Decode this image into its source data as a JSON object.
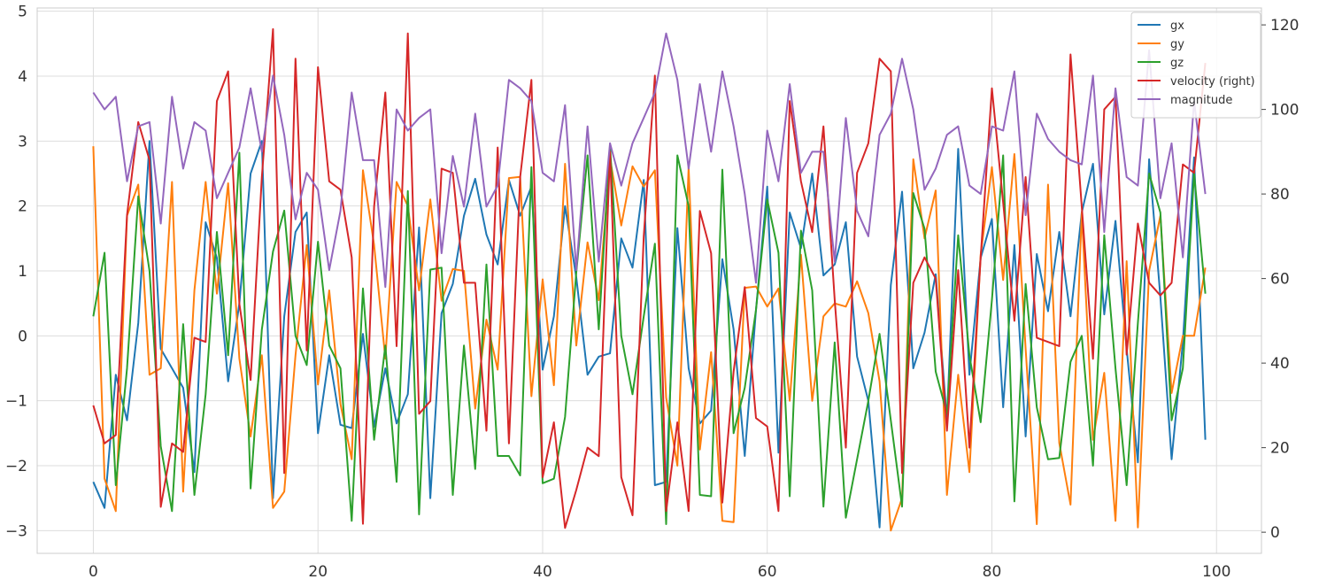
{
  "chart_data": {
    "type": "line",
    "title": "",
    "xlabel": "",
    "ylabel": "",
    "y2label": "",
    "xlim": [
      -5,
      104
    ],
    "ylim": [
      -3.35,
      5.05
    ],
    "y2lim": [
      -5,
      124
    ],
    "x_ticks": [
      0,
      20,
      40,
      60,
      80,
      100
    ],
    "x_tick_labels": [
      "0",
      "20",
      "40",
      "60",
      "80",
      "100"
    ],
    "y_ticks": [
      -3,
      -2,
      -1,
      0,
      1,
      2,
      3,
      4,
      5
    ],
    "y_tick_labels": [
      "−3",
      "−2",
      "−1",
      "0",
      "1",
      "2",
      "3",
      "4",
      "5"
    ],
    "y2_ticks": [
      0,
      20,
      40,
      60,
      80,
      100,
      120
    ],
    "y2_tick_labels": [
      "0",
      "20",
      "40",
      "60",
      "80",
      "100",
      "120"
    ],
    "grid": true,
    "legend_position": "top-right",
    "x": [
      0,
      1,
      2,
      3,
      4,
      5,
      6,
      7,
      8,
      9,
      10,
      11,
      12,
      13,
      14,
      15,
      16,
      17,
      18,
      19,
      20,
      21,
      22,
      23,
      24,
      25,
      26,
      27,
      28,
      29,
      30,
      31,
      32,
      33,
      34,
      35,
      36,
      37,
      38,
      39,
      40,
      41,
      42,
      43,
      44,
      45,
      46,
      47,
      48,
      49,
      50,
      51,
      52,
      53,
      54,
      55,
      56,
      57,
      58,
      59,
      60,
      61,
      62,
      63,
      64,
      65,
      66,
      67,
      68,
      69,
      70,
      71,
      72,
      73,
      74,
      75,
      76,
      77,
      78,
      79,
      80,
      81,
      82,
      83,
      84,
      85,
      86,
      87,
      88,
      89,
      90,
      91,
      92,
      93,
      94,
      95,
      96,
      97,
      98,
      99
    ],
    "series": [
      {
        "name": "gx",
        "axis": "left",
        "color": "#1f77b4",
        "values": [
          -2.25,
          -2.65,
          -0.6,
          -1.3,
          0.2,
          3.0,
          -0.2,
          -0.5,
          -0.8,
          -2.1,
          1.75,
          1.2,
          -0.7,
          0.5,
          2.5,
          3.0,
          -2.5,
          0.3,
          1.6,
          1.9,
          -1.5,
          -0.3,
          -1.37,
          -1.42,
          0.03,
          -1.4,
          -0.5,
          -1.35,
          -0.9,
          1.67,
          -2.5,
          0.35,
          0.8,
          1.85,
          2.42,
          1.56,
          1.1,
          2.4,
          1.85,
          2.3,
          -0.52,
          0.3,
          2.0,
          0.9,
          -0.6,
          -0.32,
          -0.27,
          1.5,
          1.05,
          2.4,
          -2.3,
          -2.25,
          1.66,
          -0.5,
          -1.35,
          -1.15,
          1.18,
          0.1,
          -1.85,
          0.4,
          2.3,
          -1.8,
          1.9,
          1.35,
          2.5,
          0.93,
          1.1,
          1.75,
          -0.32,
          -1.0,
          -2.95,
          0.78,
          2.22,
          -0.5,
          0.05,
          0.95,
          -1.3,
          2.88,
          -0.6,
          1.2,
          1.8,
          -1.1,
          1.4,
          -1.55,
          1.26,
          0.38,
          1.6,
          0.3,
          1.9,
          2.65,
          0.33,
          1.77,
          -0.2,
          -1.95,
          2.72,
          0.6,
          -1.9,
          -0.1,
          2.75,
          -1.6
        ]
      },
      {
        "name": "gy",
        "axis": "left",
        "color": "#ff7f0e",
        "values": [
          2.92,
          -2.2,
          -2.7,
          1.85,
          2.33,
          -0.6,
          -0.5,
          2.37,
          -2.4,
          0.7,
          2.37,
          0.65,
          2.35,
          -0.35,
          -1.55,
          -0.3,
          -2.65,
          -2.4,
          -0.3,
          1.4,
          -0.75,
          0.7,
          -1.05,
          -1.9,
          2.55,
          1.4,
          -0.35,
          2.37,
          2.0,
          0.7,
          2.1,
          0.54,
          1.03,
          1.0,
          -1.12,
          0.25,
          -0.52,
          2.43,
          2.45,
          -0.93,
          0.87,
          -0.76,
          2.65,
          -0.15,
          1.44,
          0.55,
          2.74,
          1.7,
          2.61,
          2.3,
          2.55,
          -0.95,
          -2.0,
          2.6,
          -1.75,
          -0.25,
          -2.85,
          -2.87,
          0.74,
          0.76,
          0.45,
          0.73,
          -1.0,
          1.25,
          -1.0,
          0.3,
          0.5,
          0.45,
          0.84,
          0.35,
          -0.7,
          -3.0,
          -2.5,
          2.72,
          1.5,
          2.24,
          -2.45,
          -0.6,
          -2.1,
          1.25,
          2.6,
          0.86,
          2.8,
          -0.2,
          -2.9,
          2.33,
          -1.65,
          -2.6,
          1.9,
          -1.6,
          -0.57,
          -2.85,
          1.15,
          -2.95,
          1.0,
          1.85,
          -0.88,
          0.0,
          0.0,
          1.05
        ]
      },
      {
        "name": "gz",
        "axis": "left",
        "color": "#2ca02c",
        "values": [
          0.3,
          1.28,
          -2.3,
          -0.5,
          2.15,
          1.0,
          -1.7,
          -2.7,
          0.18,
          -2.45,
          -0.9,
          1.6,
          -0.3,
          2.82,
          -2.35,
          0.1,
          1.3,
          1.93,
          0.0,
          -0.45,
          1.45,
          -0.15,
          -0.5,
          -2.85,
          0.73,
          -1.6,
          -0.15,
          -2.25,
          2.23,
          -2.75,
          1.02,
          1.05,
          -2.45,
          -0.15,
          -2.05,
          1.1,
          -1.85,
          -1.85,
          -2.15,
          2.6,
          -2.27,
          -2.2,
          -1.25,
          0.98,
          2.78,
          0.1,
          2.93,
          0.0,
          -0.9,
          0.3,
          1.42,
          -2.9,
          2.78,
          2.0,
          -2.45,
          -2.47,
          2.56,
          -1.5,
          -0.8,
          0.4,
          2.1,
          1.28,
          -2.47,
          1.62,
          0.7,
          -2.63,
          -0.1,
          -2.8,
          -1.9,
          -1.0,
          0.03,
          -1.3,
          -2.63,
          2.2,
          1.65,
          -0.55,
          -1.2,
          1.55,
          -0.3,
          -1.33,
          0.55,
          2.78,
          -2.55,
          0.8,
          -1.1,
          -1.9,
          -1.88,
          -0.4,
          0.0,
          -2.0,
          1.55,
          -0.5,
          -2.3,
          0.2,
          2.5,
          1.9,
          -1.3,
          -0.5,
          2.5,
          0.65
        ]
      },
      {
        "name": "velocity (right)",
        "axis": "right",
        "color": "#d62728",
        "values": [
          30,
          21,
          23,
          75,
          97,
          88,
          6,
          21,
          19,
          46,
          45,
          102,
          109,
          54,
          36,
          84,
          119,
          14,
          112,
          43,
          110,
          83,
          81,
          65,
          2,
          77,
          104,
          44,
          118,
          28,
          31,
          86,
          85,
          59,
          59,
          24,
          91,
          21,
          84,
          107,
          13,
          26,
          1,
          10,
          20,
          18,
          90,
          13,
          4,
          70,
          108,
          5,
          26,
          5,
          76,
          66,
          7,
          38,
          58,
          27,
          25,
          5,
          102,
          83,
          71,
          96,
          55,
          20,
          85,
          92,
          112,
          109,
          14,
          59,
          65,
          60,
          24,
          62,
          20,
          65,
          105,
          78,
          50,
          84,
          46,
          45,
          44,
          113,
          77,
          41,
          100,
          103,
          42,
          73,
          59,
          56,
          59,
          87,
          85,
          111
        ]
      },
      {
        "name": "magnitude",
        "axis": "right",
        "color": "#9467bd",
        "values": [
          104,
          100,
          103,
          83,
          96,
          97,
          73,
          103,
          86,
          97,
          95,
          79,
          85,
          91,
          105,
          90,
          108,
          94,
          74,
          85,
          81,
          62,
          76,
          104,
          88,
          88,
          58,
          100,
          95,
          98,
          100,
          66,
          89,
          77,
          99,
          77,
          82,
          107,
          105,
          102,
          85,
          83,
          101,
          62,
          96,
          64,
          92,
          82,
          92,
          98,
          104,
          118,
          107,
          86,
          106,
          90,
          109,
          96,
          80,
          59,
          95,
          83,
          106,
          85,
          90,
          90,
          64,
          98,
          76,
          70,
          94,
          99,
          112,
          100,
          81,
          86,
          94,
          96,
          82,
          80,
          96,
          95,
          109,
          75,
          99,
          93,
          90,
          88,
          87,
          108,
          71,
          105,
          84,
          82,
          114,
          79,
          92,
          65,
          102,
          80
        ]
      }
    ]
  }
}
